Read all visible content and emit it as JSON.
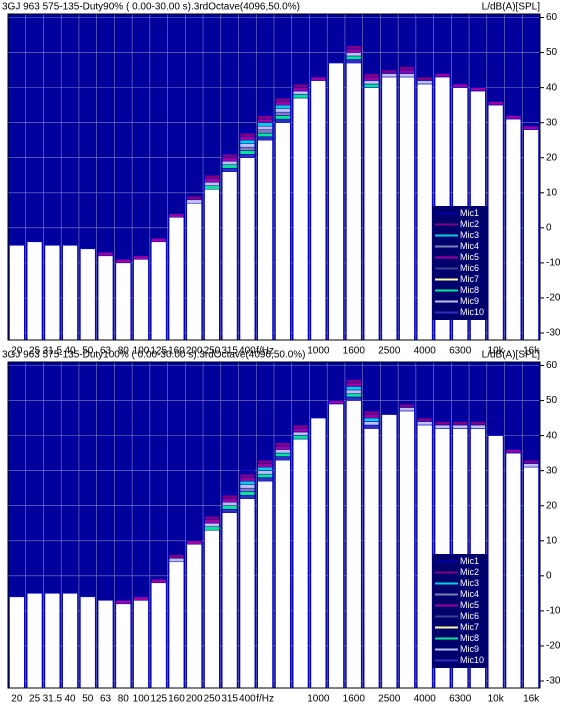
{
  "chart_data": [
    {
      "type": "bar",
      "title": "3GJ 963 575-135-Duty90% ( 0.00-30.00 s).3rdOctave(4096,50.0%)",
      "y_label": "L/dB(A)[SPL]",
      "categories": [
        "20",
        "25",
        "31.5",
        "40",
        "50",
        "63",
        "80",
        "100",
        "125",
        "160",
        "200",
        "250",
        "315",
        "400",
        "f/Hz",
        null,
        null,
        "1000",
        null,
        "1600",
        null,
        "2500",
        null,
        "4000",
        null,
        "6300",
        null,
        "10k",
        null,
        "16k"
      ],
      "series": [
        {
          "name": "Mic1",
          "color": "#0000a8",
          "values": [
            -5,
            -4,
            -5,
            -5,
            -6,
            -7,
            -9,
            -8,
            -3,
            4,
            9,
            15,
            22,
            28,
            33,
            38,
            41,
            43,
            47,
            53,
            44,
            45,
            46,
            43,
            44,
            41,
            40,
            36,
            32,
            29
          ]
        },
        {
          "name": "Mic2",
          "color": "#800080",
          "values": [
            -5,
            -4,
            -5,
            -5,
            -6,
            -7,
            -9,
            -8,
            -3,
            4,
            9,
            15,
            21,
            27,
            32,
            37,
            41,
            43,
            47,
            52,
            44,
            45,
            46,
            43,
            44,
            41,
            40,
            36,
            32,
            29
          ]
        },
        {
          "name": "Mic3",
          "color": "#00d0e0",
          "values": [
            -5,
            -4,
            -5,
            -5,
            -6,
            -7,
            -9,
            -8,
            -3,
            4,
            8,
            13,
            20,
            25,
            30,
            35,
            39,
            43,
            47,
            51,
            42,
            44,
            45,
            42,
            44,
            41,
            40,
            36,
            32,
            29
          ]
        },
        {
          "name": "Mic4",
          "color": "#8080b8",
          "values": [
            -5,
            -4,
            -5,
            -5,
            -6,
            -8,
            -10,
            -9,
            -4,
            3,
            8,
            13,
            18,
            23,
            28,
            33,
            39,
            42,
            47,
            49,
            42,
            44,
            44,
            42,
            43,
            40,
            39,
            35,
            31,
            28
          ]
        },
        {
          "name": "Mic5",
          "color": "#a000a0",
          "values": [
            -5,
            -4,
            -5,
            -5,
            -6,
            -7,
            -9,
            -8,
            -3,
            4,
            8,
            14,
            20,
            26,
            31,
            36,
            40,
            43,
            47,
            51,
            43,
            44,
            45,
            42,
            44,
            41,
            40,
            36,
            32,
            29
          ]
        },
        {
          "name": "Mic6",
          "color": "#404090",
          "values": [
            -5,
            -4,
            -5,
            -5,
            -6,
            -8,
            -10,
            -9,
            -4,
            3,
            7,
            12,
            17,
            22,
            27,
            32,
            38,
            42,
            47,
            48,
            41,
            43,
            44,
            41,
            43,
            40,
            39,
            35,
            31,
            28
          ]
        },
        {
          "name": "Mic7",
          "color": "#ffffa0",
          "values": [
            -5,
            -4,
            -5,
            -5,
            -6,
            -8,
            -10,
            -9,
            -4,
            3,
            7,
            11,
            16,
            20,
            25,
            30,
            37,
            42,
            47,
            47,
            40,
            43,
            43,
            41,
            43,
            40,
            39,
            35,
            31,
            28
          ]
        },
        {
          "name": "Mic8",
          "color": "#00e890",
          "values": [
            -5,
            -4,
            -5,
            -5,
            -6,
            -8,
            -10,
            -9,
            -4,
            3,
            8,
            12,
            18,
            22,
            27,
            32,
            38,
            42,
            47,
            49,
            41,
            44,
            44,
            42,
            43,
            40,
            39,
            35,
            31,
            28
          ]
        },
        {
          "name": "Mic9",
          "color": "#c0c0f0",
          "values": [
            -5,
            -4,
            -5,
            -5,
            -6,
            -8,
            -10,
            -9,
            -4,
            3,
            8,
            13,
            19,
            24,
            29,
            34,
            39,
            42,
            47,
            50,
            42,
            44,
            44,
            42,
            43,
            40,
            39,
            35,
            31,
            28
          ]
        },
        {
          "name": "Mic10",
          "color": "#3030c0",
          "values": [
            -5,
            -4,
            -5,
            -5,
            -6,
            -8,
            -10,
            -9,
            -4,
            3,
            7,
            11,
            17,
            21,
            26,
            31,
            37,
            42,
            47,
            48,
            40,
            43,
            43,
            41,
            43,
            40,
            39,
            35,
            31,
            28
          ]
        }
      ],
      "ylim": [
        -32,
        61
      ],
      "yticks": [
        -30,
        -20,
        -10,
        0,
        10,
        20,
        30,
        40,
        50,
        60
      ],
      "grid": true,
      "legend": "lower right",
      "background": "#00009c"
    },
    {
      "type": "bar",
      "title": "3GJ 963 575-135-Duty100% ( 0.00-30.00 s).3rdOctave(4096,50.0%)",
      "y_label": "L/dB(A)[SPL]",
      "categories": [
        "20",
        "25",
        "31.5",
        "40",
        "50",
        "63",
        "80",
        "100",
        "125",
        "160",
        "200",
        "250",
        "315",
        "400",
        "f/Hz",
        null,
        null,
        "1000",
        null,
        "1600",
        null,
        "2500",
        null,
        "4000",
        null,
        "6300",
        null,
        "10k",
        null,
        "16k"
      ],
      "series": [
        {
          "name": "Mic1",
          "color": "#0000a8",
          "values": [
            -6,
            -5,
            -5,
            -5,
            -6,
            -7,
            -7,
            -6,
            -1,
            6,
            10,
            17,
            24,
            30,
            34,
            39,
            43,
            45,
            50,
            57,
            47,
            46,
            49,
            45,
            44,
            44,
            44,
            40,
            36,
            33
          ]
        },
        {
          "name": "Mic2",
          "color": "#800080",
          "values": [
            -6,
            -5,
            -5,
            -5,
            -6,
            -7,
            -7,
            -6,
            -1,
            6,
            10,
            17,
            23,
            29,
            33,
            38,
            43,
            45,
            50,
            56,
            47,
            46,
            49,
            45,
            44,
            44,
            44,
            40,
            36,
            33
          ]
        },
        {
          "name": "Mic3",
          "color": "#00d0e0",
          "values": [
            -6,
            -5,
            -5,
            -5,
            -6,
            -7,
            -7,
            -6,
            -1,
            5,
            10,
            15,
            22,
            27,
            31,
            37,
            41,
            45,
            50,
            54,
            45,
            46,
            48,
            44,
            43,
            43,
            43,
            40,
            36,
            32
          ]
        },
        {
          "name": "Mic4",
          "color": "#8080b8",
          "values": [
            -6,
            -5,
            -5,
            -5,
            -6,
            -7,
            -8,
            -7,
            -2,
            5,
            9,
            15,
            20,
            25,
            30,
            35,
            41,
            45,
            49,
            53,
            44,
            46,
            48,
            44,
            43,
            43,
            43,
            40,
            35,
            32
          ]
        },
        {
          "name": "Mic5",
          "color": "#a000a0",
          "values": [
            -6,
            -5,
            -5,
            -5,
            -6,
            -7,
            -7,
            -6,
            -1,
            5,
            10,
            16,
            22,
            28,
            32,
            37,
            42,
            45,
            50,
            55,
            46,
            46,
            48,
            44,
            43,
            43,
            43,
            40,
            36,
            32
          ]
        },
        {
          "name": "Mic6",
          "color": "#404090",
          "values": [
            -6,
            -5,
            -5,
            -5,
            -6,
            -7,
            -8,
            -7,
            -2,
            4,
            9,
            14,
            19,
            24,
            28,
            34,
            40,
            45,
            49,
            51,
            43,
            46,
            47,
            43,
            42,
            42,
            42,
            40,
            35,
            31
          ]
        },
        {
          "name": "Mic7",
          "color": "#ffffa0",
          "values": [
            -6,
            -5,
            -5,
            -5,
            -6,
            -7,
            -8,
            -7,
            -2,
            4,
            9,
            13,
            18,
            22,
            27,
            33,
            39,
            45,
            49,
            50,
            42,
            46,
            47,
            43,
            42,
            42,
            42,
            40,
            35,
            31
          ]
        },
        {
          "name": "Mic8",
          "color": "#00e890",
          "values": [
            -6,
            -5,
            -5,
            -5,
            -6,
            -7,
            -8,
            -7,
            -2,
            5,
            9,
            14,
            20,
            24,
            29,
            35,
            40,
            45,
            49,
            52,
            44,
            46,
            48,
            44,
            43,
            43,
            43,
            40,
            35,
            32
          ]
        },
        {
          "name": "Mic9",
          "color": "#c0c0f0",
          "values": [
            -6,
            -5,
            -5,
            -5,
            -6,
            -7,
            -8,
            -7,
            -2,
            5,
            9,
            15,
            21,
            26,
            30,
            36,
            41,
            45,
            49,
            53,
            44,
            46,
            48,
            44,
            43,
            43,
            43,
            40,
            35,
            32
          ]
        },
        {
          "name": "Mic10",
          "color": "#3030c0",
          "values": [
            -6,
            -5,
            -5,
            -5,
            -6,
            -7,
            -8,
            -7,
            -2,
            4,
            9,
            13,
            19,
            23,
            28,
            34,
            39,
            45,
            49,
            51,
            43,
            46,
            47,
            43,
            42,
            42,
            42,
            40,
            35,
            31
          ]
        }
      ],
      "ylim": [
        -32,
        61
      ],
      "yticks": [
        -30,
        -20,
        -10,
        0,
        10,
        20,
        30,
        40,
        50,
        60
      ],
      "grid": true,
      "legend": "lower right",
      "background": "#00009c"
    }
  ]
}
